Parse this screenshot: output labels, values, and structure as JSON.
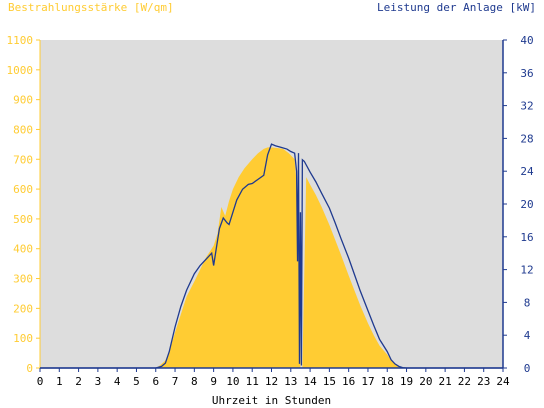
{
  "chart_data": {
    "type": "area",
    "left_title": "Bestrahlungsstärke [W/qm]",
    "right_title": "Leistung der Anlage [kW]",
    "xlabel": "Uhrzeit in Stunden",
    "x_ticks": [
      "0",
      "1",
      "2",
      "3",
      "4",
      "5",
      "6",
      "7",
      "8",
      "9",
      "10",
      "11",
      "12",
      "13",
      "14",
      "15",
      "16",
      "17",
      "18",
      "19",
      "20",
      "21",
      "22",
      "23",
      "24"
    ],
    "y_left_ticks": [
      "0",
      "100",
      "200",
      "300",
      "400",
      "500",
      "600",
      "700",
      "800",
      "900",
      "1000",
      "1100"
    ],
    "y_right_ticks": [
      "0",
      "4",
      "8",
      "12",
      "16",
      "20",
      "24",
      "28",
      "32",
      "36",
      "40"
    ],
    "xlim": [
      0,
      24
    ],
    "ylim_left": [
      0,
      1100
    ],
    "ylim_right": [
      0,
      40
    ],
    "grid": false,
    "colors": {
      "irradiance": "#ffcc33",
      "power": "#1f3a8f",
      "plot_bg": "#dddddd",
      "left_axis_text": "#ffcc33",
      "right_axis_text": "#1f3a8f",
      "bottom_text": "#000000"
    },
    "series": [
      {
        "axis": "left",
        "kind": "area",
        "x": [
          0,
          6.0,
          6.2,
          6.5,
          6.7,
          7.0,
          7.3,
          7.6,
          8.0,
          8.3,
          8.6,
          9.0,
          9.2,
          9.4,
          9.6,
          9.8,
          10.0,
          10.3,
          10.6,
          11.0,
          11.3,
          11.6,
          11.8,
          12.0,
          12.3,
          12.6,
          12.9,
          13.2,
          13.4,
          13.5,
          13.6,
          13.8,
          14.0,
          14.3,
          14.6,
          15.0,
          15.3,
          15.6,
          16.0,
          16.3,
          16.6,
          17.0,
          17.3,
          17.6,
          18.0,
          18.2,
          18.4,
          18.6,
          18.8,
          19.0,
          24
        ],
        "y": [
          0,
          0,
          8,
          25,
          55,
          120,
          180,
          240,
          290,
          330,
          370,
          410,
          450,
          540,
          510,
          560,
          600,
          640,
          670,
          700,
          720,
          735,
          740,
          740,
          738,
          735,
          720,
          700,
          540,
          0,
          0,
          640,
          615,
          580,
          540,
          480,
          430,
          380,
          310,
          260,
          210,
          150,
          110,
          75,
          45,
          25,
          12,
          6,
          2,
          0,
          0
        ]
      },
      {
        "axis": "right",
        "kind": "line",
        "x": [
          0,
          6.0,
          6.3,
          6.5,
          6.7,
          7.0,
          7.3,
          7.6,
          8.0,
          8.3,
          8.5,
          8.7,
          8.9,
          9.0,
          9.2,
          9.3,
          9.5,
          9.7,
          9.8,
          10.0,
          10.2,
          10.5,
          10.8,
          11.0,
          11.3,
          11.6,
          11.8,
          12.0,
          12.2,
          12.5,
          12.8,
          13.0,
          13.2,
          13.3,
          13.35,
          13.4,
          13.45,
          13.5,
          13.55,
          13.6,
          13.7,
          14.0,
          14.3,
          14.6,
          15.0,
          15.3,
          15.6,
          16.0,
          16.3,
          16.6,
          17.0,
          17.3,
          17.6,
          18.0,
          18.2,
          18.4,
          18.6,
          18.8,
          19.0,
          24
        ],
        "y": [
          0,
          0,
          0.2,
          0.6,
          2.0,
          5.0,
          7.5,
          9.5,
          11.5,
          12.5,
          13.0,
          13.5,
          14.0,
          12.5,
          15.5,
          17.0,
          18.3,
          17.7,
          17.5,
          19.0,
          20.5,
          21.8,
          22.4,
          22.5,
          23.0,
          23.5,
          26.0,
          27.3,
          27.1,
          26.9,
          26.7,
          26.4,
          26.2,
          24.0,
          13.0,
          26.2,
          0.5,
          19.0,
          0.3,
          25.4,
          25.2,
          23.9,
          22.7,
          21.3,
          19.5,
          17.7,
          15.8,
          13.4,
          11.4,
          9.4,
          7.0,
          5.2,
          3.5,
          2.0,
          1.0,
          0.5,
          0.2,
          0.05,
          0,
          0
        ]
      }
    ]
  }
}
